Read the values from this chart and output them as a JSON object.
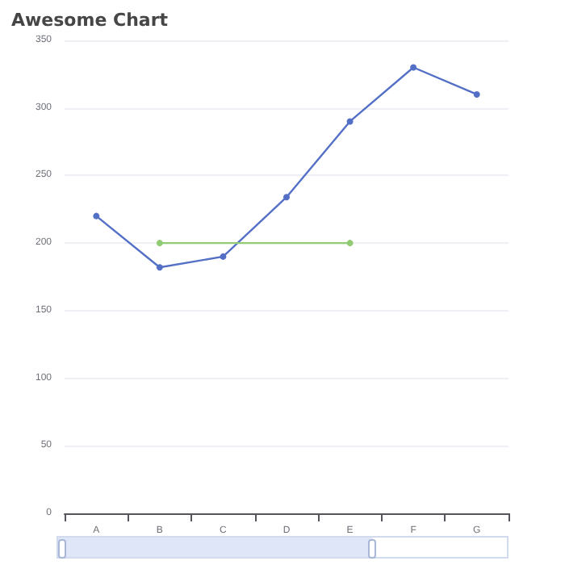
{
  "chart_data": {
    "type": "line",
    "title": "Awesome Chart",
    "categories": [
      "A",
      "B",
      "C",
      "D",
      "E",
      "F",
      "G"
    ],
    "series": [
      {
        "color": "#5470c6",
        "values": [
          220,
          182,
          190,
          234,
          290,
          330,
          310
        ]
      },
      {
        "color": "#91cc75",
        "x": [
          "B",
          "E"
        ],
        "values": [
          200,
          200
        ]
      }
    ],
    "ylim": [
      0,
      350
    ],
    "yticks": [
      0,
      50,
      100,
      150,
      200,
      250,
      300,
      350
    ],
    "grid": "y",
    "marker": "circle",
    "line_style": "solid"
  }
}
